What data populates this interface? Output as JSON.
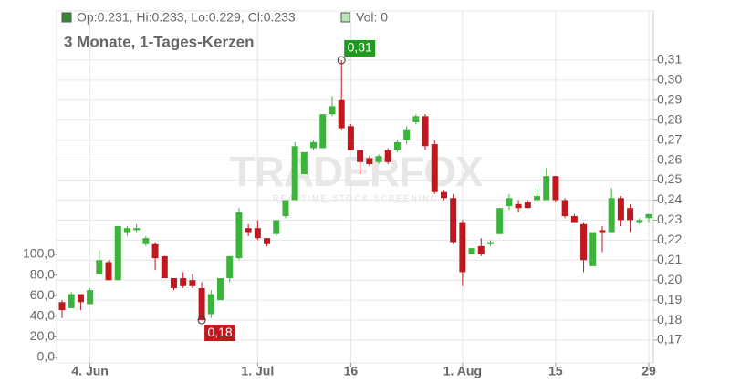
{
  "chart_data": {
    "type": "candlestick",
    "header": "Op:0.231, Hi:0.233, Lo:0.229, Cl:0.233",
    "volume_legend": "Vol: 0",
    "subtitle": "3 Monate, 1-Tages-Kerzen",
    "watermark": "TRADERFOX",
    "watermark_tagline": "REALTIME STOCK SCREENING",
    "categories": [
      null,
      null,
      null,
      "4. Jun",
      null,
      null,
      null,
      null,
      null,
      null,
      null,
      null,
      null,
      null,
      null,
      null,
      null,
      null,
      null,
      null,
      null,
      "1. Jul",
      null,
      null,
      null,
      null,
      null,
      null,
      null,
      null,
      null,
      "16",
      null,
      null,
      null,
      null,
      null,
      null,
      null,
      null,
      null,
      null,
      null,
      "1. Aug",
      null,
      null,
      null,
      null,
      null,
      null,
      null,
      null,
      null,
      "15",
      null,
      null,
      null,
      null,
      null,
      null,
      null,
      null,
      null,
      "29"
    ],
    "open": [
      0.189,
      0.186,
      0.193,
      0.188,
      0.203,
      0.209,
      0.2,
      0.224,
      0.225,
      0.218,
      0.218,
      0.212,
      0.201,
      0.201,
      0.2,
      0.196,
      0.183,
      0.19,
      0.201,
      0.211,
      0.226,
      0.226,
      0.221,
      0.223,
      0.232,
      0.24,
      0.253,
      0.266,
      0.266,
      0.283,
      0.29,
      0.277,
      0.265,
      0.261,
      0.259,
      0.265,
      0.265,
      0.27,
      0.279,
      0.282,
      0.268,
      0.244,
      0.241,
      0.229,
      0.213,
      0.217,
      0.218,
      0.223,
      0.237,
      0.238,
      0.239,
      0.24,
      0.24,
      0.252,
      0.24,
      0.232,
      0.228,
      0.207,
      0.225,
      0.224,
      0.241,
      0.236,
      0.229,
      0.231
    ],
    "high": [
      0.19,
      0.194,
      0.193,
      0.196,
      0.215,
      0.21,
      0.227,
      0.227,
      0.228,
      0.222,
      0.219,
      0.212,
      0.201,
      0.204,
      0.203,
      0.199,
      0.195,
      0.201,
      0.212,
      0.236,
      0.228,
      0.23,
      0.221,
      0.23,
      0.24,
      0.269,
      0.264,
      0.27,
      0.283,
      0.292,
      0.31,
      0.278,
      0.265,
      0.262,
      0.263,
      0.266,
      0.27,
      0.277,
      0.283,
      0.283,
      0.27,
      0.245,
      0.243,
      0.23,
      0.216,
      0.221,
      0.22,
      0.236,
      0.243,
      0.24,
      0.24,
      0.246,
      0.256,
      0.252,
      0.241,
      0.233,
      0.229,
      0.224,
      0.227,
      0.246,
      0.242,
      0.238,
      0.231,
      0.233
    ],
    "low": [
      0.181,
      0.186,
      0.185,
      0.188,
      0.203,
      0.2,
      0.2,
      0.222,
      0.224,
      0.217,
      0.205,
      0.201,
      0.195,
      0.196,
      0.196,
      0.18,
      0.181,
      0.19,
      0.199,
      0.21,
      0.222,
      0.22,
      0.217,
      0.222,
      0.231,
      0.24,
      0.253,
      0.265,
      0.266,
      0.282,
      0.275,
      0.265,
      0.253,
      0.257,
      0.258,
      0.258,
      0.264,
      0.268,
      0.278,
      0.265,
      0.243,
      0.24,
      0.218,
      0.197,
      0.213,
      0.212,
      0.217,
      0.223,
      0.235,
      0.234,
      0.236,
      0.239,
      0.24,
      0.239,
      0.231,
      0.229,
      0.204,
      0.207,
      0.214,
      0.224,
      0.227,
      0.224,
      0.228,
      0.229
    ],
    "close": [
      0.185,
      0.193,
      0.189,
      0.195,
      0.21,
      0.2,
      0.227,
      0.226,
      0.226,
      0.221,
      0.211,
      0.201,
      0.196,
      0.197,
      0.197,
      0.18,
      0.193,
      0.201,
      0.212,
      0.234,
      0.224,
      0.221,
      0.218,
      0.23,
      0.24,
      0.267,
      0.264,
      0.269,
      0.283,
      0.287,
      0.276,
      0.265,
      0.259,
      0.258,
      0.262,
      0.259,
      0.269,
      0.275,
      0.282,
      0.267,
      0.244,
      0.241,
      0.219,
      0.204,
      0.216,
      0.213,
      0.219,
      0.236,
      0.241,
      0.236,
      0.236,
      0.242,
      0.252,
      0.24,
      0.232,
      0.229,
      0.21,
      0.224,
      0.224,
      0.241,
      0.23,
      0.23,
      0.23,
      0.233
    ],
    "up_color": "#3cb43c",
    "down_color": "#c0181e",
    "ylim": [
      0.1586,
      0.3346
    ],
    "yticks": [
      {
        "value": 0.17,
        "label": "0,17"
      },
      {
        "value": 0.18,
        "label": "0,18"
      },
      {
        "value": 0.19,
        "label": "0,19"
      },
      {
        "value": 0.2,
        "label": "0,20"
      },
      {
        "value": 0.21,
        "label": "0,21"
      },
      {
        "value": 0.22,
        "label": "0,22"
      },
      {
        "value": 0.23,
        "label": "0,23"
      },
      {
        "value": 0.24,
        "label": "0,24"
      },
      {
        "value": 0.25,
        "label": "0,25"
      },
      {
        "value": 0.26,
        "label": "0,26"
      },
      {
        "value": 0.27,
        "label": "0,27"
      },
      {
        "value": 0.28,
        "label": "0,28"
      },
      {
        "value": 0.29,
        "label": "0,29"
      },
      {
        "value": 0.3,
        "label": "0,30"
      },
      {
        "value": 0.31,
        "label": "0,31"
      }
    ],
    "y2lim": [
      -5.3,
      336.3
    ],
    "y2ticks": [
      {
        "value": 0,
        "label": "0,0"
      },
      {
        "value": 20,
        "label": "20,0"
      },
      {
        "value": 40,
        "label": "40,0"
      },
      {
        "value": 60,
        "label": "60,0"
      },
      {
        "value": 80,
        "label": "80,0"
      },
      {
        "value": 100,
        "label": "100,0"
      }
    ],
    "grid": true,
    "annotations": [
      {
        "label": "0,31",
        "value": 0.31,
        "color": "#1e9a1e",
        "kind": "high"
      },
      {
        "label": "0,18",
        "value": 0.18,
        "color": "#c0181e",
        "kind": "low"
      }
    ]
  }
}
